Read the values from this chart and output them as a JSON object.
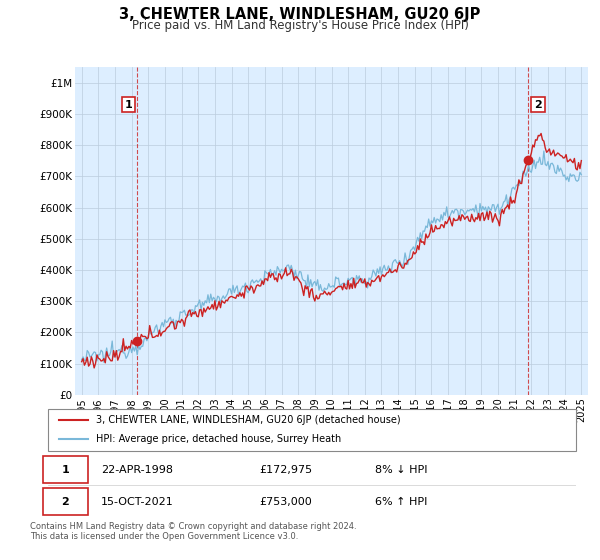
{
  "title": "3, CHEWTER LANE, WINDLESHAM, GU20 6JP",
  "subtitle": "Price paid vs. HM Land Registry's House Price Index (HPI)",
  "legend_line1": "3, CHEWTER LANE, WINDLESHAM, GU20 6JP (detached house)",
  "legend_line2": "HPI: Average price, detached house, Surrey Heath",
  "annotation1_date": "22-APR-1998",
  "annotation1_price": "£172,975",
  "annotation1_hpi": "8% ↓ HPI",
  "annotation2_date": "15-OCT-2021",
  "annotation2_price": "£753,000",
  "annotation2_hpi": "6% ↑ HPI",
  "footer": "Contains HM Land Registry data © Crown copyright and database right 2024.\nThis data is licensed under the Open Government Licence v3.0.",
  "hpi_color": "#7ab8d9",
  "price_color": "#cc2222",
  "annotation_box_color": "#cc2222",
  "plot_bg_color": "#ddeeff",
  "grid_color": "#bbccdd",
  "ytick_labels": [
    "£0",
    "£100K",
    "£200K",
    "£300K",
    "£400K",
    "£500K",
    "£600K",
    "£700K",
    "£800K",
    "£900K",
    "£1M"
  ],
  "yticks": [
    0,
    100000,
    200000,
    300000,
    400000,
    500000,
    600000,
    700000,
    800000,
    900000,
    1000000
  ],
  "sale1_year": 1998.3,
  "sale1_price": 172975,
  "sale2_year": 2021.8,
  "sale2_price": 753000,
  "xstart": 1995,
  "xend": 2025
}
